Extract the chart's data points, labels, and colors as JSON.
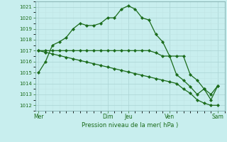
{
  "xlabel": "Pression niveau de la mer( hPa )",
  "background_color": "#c8eeee",
  "grid_color_major": "#aad4d4",
  "grid_color_minor": "#c0e4e4",
  "line_color": "#1a6b1a",
  "ylim": [
    1011.5,
    1021.5
  ],
  "yticks": [
    1012,
    1013,
    1014,
    1015,
    1016,
    1017,
    1018,
    1019,
    1020,
    1021
  ],
  "xtick_labels": [
    "Mer",
    "Dim",
    "Jeu",
    "Ven",
    "Sam"
  ],
  "xtick_positions": [
    0,
    10,
    13,
    19,
    26
  ],
  "xlim": [
    -0.5,
    27
  ],
  "line1_x": [
    0,
    1,
    2,
    3,
    4,
    5,
    6,
    7,
    8,
    9,
    10,
    11,
    12,
    13,
    14,
    15,
    16,
    17,
    18,
    19,
    20,
    21,
    22,
    23,
    24,
    25,
    26
  ],
  "line1_y": [
    1015.0,
    1016.0,
    1017.5,
    1017.8,
    1018.2,
    1019.0,
    1019.5,
    1019.3,
    1019.3,
    1019.5,
    1020.0,
    1020.0,
    1020.8,
    1021.1,
    1020.8,
    1020.0,
    1019.8,
    1018.5,
    1017.8,
    1016.5,
    1014.8,
    1014.3,
    1013.7,
    1013.0,
    1013.5,
    1012.5,
    1013.8
  ],
  "line2_x": [
    0,
    1,
    2,
    3,
    4,
    5,
    6,
    7,
    8,
    9,
    10,
    11,
    12,
    13,
    14,
    15,
    16,
    17,
    18,
    19,
    20,
    21,
    22,
    23,
    24,
    25,
    26
  ],
  "line2_y": [
    1017.0,
    1017.0,
    1017.0,
    1017.0,
    1017.0,
    1017.0,
    1017.0,
    1017.0,
    1017.0,
    1017.0,
    1017.0,
    1017.0,
    1017.0,
    1017.0,
    1017.0,
    1017.0,
    1017.0,
    1016.8,
    1016.5,
    1016.5,
    1016.5,
    1016.5,
    1014.8,
    1014.3,
    1013.5,
    1013.0,
    1013.8
  ],
  "line3_x": [
    0,
    1,
    2,
    3,
    4,
    5,
    6,
    7,
    8,
    9,
    10,
    11,
    12,
    13,
    14,
    15,
    16,
    17,
    18,
    19,
    20,
    21,
    22,
    23,
    24,
    25,
    26
  ],
  "line3_y": [
    1017.0,
    1016.85,
    1016.7,
    1016.55,
    1016.4,
    1016.25,
    1016.1,
    1015.95,
    1015.8,
    1015.65,
    1015.5,
    1015.35,
    1015.2,
    1015.05,
    1014.9,
    1014.75,
    1014.6,
    1014.45,
    1014.3,
    1014.15,
    1014.0,
    1013.5,
    1013.1,
    1012.5,
    1012.2,
    1012.0,
    1012.0
  ]
}
